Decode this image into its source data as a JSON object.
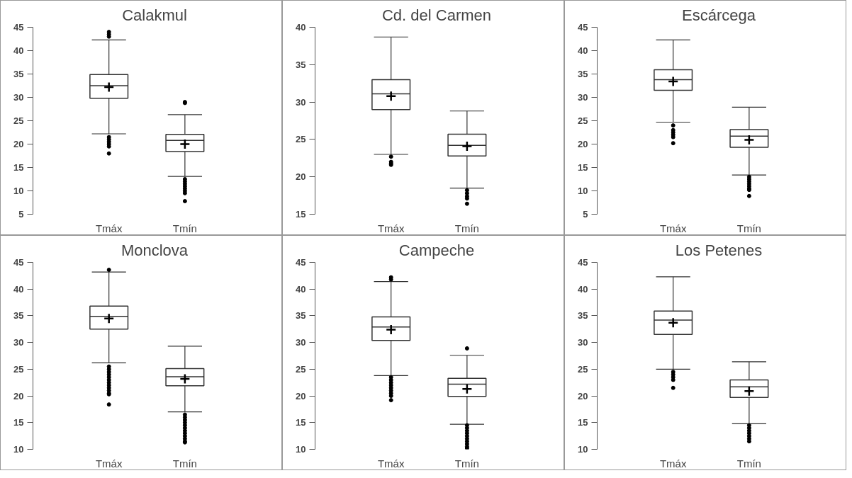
{
  "chart_data": [
    {
      "type": "box",
      "title": "Calakmul",
      "categories": [
        "Tmáx",
        "Tmín"
      ],
      "ylim": [
        5,
        45
      ],
      "yticks": [
        5,
        10,
        15,
        20,
        25,
        30,
        35,
        40,
        45
      ],
      "grid": false,
      "boxes": [
        {
          "low": 22.2,
          "q1": 29.8,
          "median": 32.5,
          "q3": 34.9,
          "high": 42.3,
          "mean": 32.2,
          "outliers": [
            43,
            43.5,
            44,
            21.5,
            21,
            20.5,
            20,
            19.5,
            18
          ]
        },
        {
          "low": 13.1,
          "q1": 18.4,
          "median": 20.8,
          "q3": 22.1,
          "high": 26.3,
          "mean": 20.0,
          "outliers": [
            28.8,
            29,
            12.5,
            12,
            11.5,
            11,
            10.5,
            10,
            9.5,
            7.8
          ]
        }
      ]
    },
    {
      "type": "box",
      "title": "Cd. del Carmen",
      "categories": [
        "Tmáx",
        "Tmín"
      ],
      "ylim": [
        15,
        40
      ],
      "yticks": [
        15,
        20,
        25,
        30,
        35,
        40
      ],
      "grid": false,
      "boxes": [
        {
          "low": 23,
          "q1": 29,
          "median": 31.1,
          "q3": 33,
          "high": 38.7,
          "mean": 30.8,
          "outliers": [
            22.7,
            22,
            21.8,
            21.6
          ]
        },
        {
          "low": 18.5,
          "q1": 22.8,
          "median": 24.2,
          "q3": 25.7,
          "high": 28.8,
          "mean": 24.1,
          "outliers": [
            18.2,
            17.8,
            17.4,
            17.1,
            16.4
          ]
        }
      ]
    },
    {
      "type": "box",
      "title": "Escárcega",
      "categories": [
        "Tmáx",
        "Tmín"
      ],
      "ylim": [
        5,
        45
      ],
      "yticks": [
        5,
        10,
        15,
        20,
        25,
        30,
        35,
        40,
        45
      ],
      "grid": false,
      "boxes": [
        {
          "low": 24.7,
          "q1": 31.5,
          "median": 33.8,
          "q3": 35.9,
          "high": 42.3,
          "mean": 33.4,
          "outliers": [
            24,
            23,
            22.5,
            22,
            21.5,
            20.2
          ]
        },
        {
          "low": 13.4,
          "q1": 19.3,
          "median": 21.7,
          "q3": 23.1,
          "high": 27.9,
          "mean": 20.9,
          "outliers": [
            13,
            12.5,
            12,
            11.5,
            11,
            10.5,
            10.2,
            8.9
          ]
        }
      ]
    },
    {
      "type": "box",
      "title": "Monclova",
      "categories": [
        "Tmáx",
        "Tmín"
      ],
      "ylim": [
        10,
        45
      ],
      "yticks": [
        10,
        15,
        20,
        25,
        30,
        35,
        40,
        45
      ],
      "grid": false,
      "boxes": [
        {
          "low": 26.2,
          "q1": 32.5,
          "median": 34.9,
          "q3": 36.8,
          "high": 43.2,
          "mean": 34.5,
          "outliers": [
            43.6,
            25.5,
            25,
            24.5,
            24,
            23.5,
            23,
            22.5,
            22,
            21.5,
            21,
            20.5,
            20.3,
            18.4
          ]
        },
        {
          "low": 17,
          "q1": 21.9,
          "median": 23.6,
          "q3": 25.1,
          "high": 29.3,
          "mean": 23.2,
          "outliers": [
            16.5,
            16,
            15.5,
            15,
            14.5,
            14,
            13.5,
            13,
            12.5,
            12,
            11.5,
            11.3
          ]
        }
      ]
    },
    {
      "type": "box",
      "title": "Campeche",
      "categories": [
        "Tmáx",
        "Tmín"
      ],
      "ylim": [
        10,
        45
      ],
      "yticks": [
        10,
        15,
        20,
        25,
        30,
        35,
        40,
        45
      ],
      "grid": false,
      "boxes": [
        {
          "low": 23.8,
          "q1": 30.4,
          "median": 32.9,
          "q3": 34.8,
          "high": 41.4,
          "mean": 32.4,
          "outliers": [
            42.2,
            41.8,
            23.5,
            23,
            22.5,
            22,
            21.5,
            21,
            20.5,
            20,
            19.2
          ]
        },
        {
          "low": 14.7,
          "q1": 19.9,
          "median": 22.2,
          "q3": 23.3,
          "high": 27.6,
          "mean": 21.3,
          "outliers": [
            28.9,
            14.5,
            14,
            13.5,
            13,
            12.5,
            12,
            11.5,
            11,
            10.5,
            10.2
          ]
        }
      ]
    },
    {
      "type": "box",
      "title": "Los Petenes",
      "categories": [
        "Tmáx",
        "Tmín"
      ],
      "ylim": [
        10,
        45
      ],
      "yticks": [
        10,
        15,
        20,
        25,
        30,
        35,
        40,
        45
      ],
      "grid": false,
      "boxes": [
        {
          "low": 25,
          "q1": 31.5,
          "median": 34.2,
          "q3": 35.9,
          "high": 42.3,
          "mean": 33.7,
          "outliers": [
            24.5,
            24,
            23.5,
            23,
            21.5
          ]
        },
        {
          "low": 14.8,
          "q1": 19.7,
          "median": 21.7,
          "q3": 23,
          "high": 26.4,
          "mean": 20.9,
          "outliers": [
            14.5,
            14,
            13.5,
            13,
            12.5,
            12,
            11.5
          ]
        }
      ]
    }
  ]
}
